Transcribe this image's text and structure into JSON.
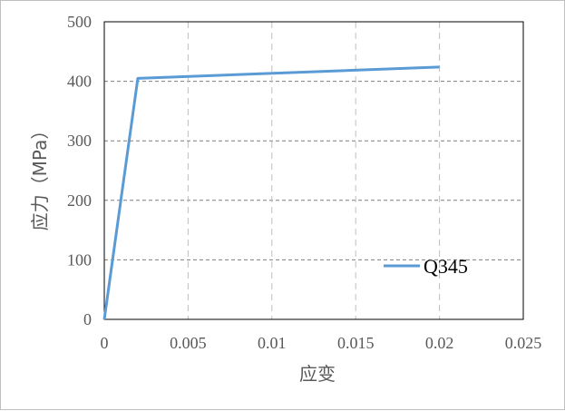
{
  "chart_data": {
    "type": "line",
    "title": "",
    "xlabel": "应变",
    "ylabel": "应力（MPa）",
    "xlim": [
      0,
      0.025
    ],
    "ylim": [
      0,
      500
    ],
    "x_ticks": [
      0,
      0.005,
      0.01,
      0.015,
      0.02,
      0.025
    ],
    "x_tick_labels": [
      "0",
      "0.005",
      "0.01",
      "0.015",
      "0.02",
      "0.025"
    ],
    "y_ticks": [
      0,
      100,
      200,
      300,
      400,
      500
    ],
    "y_tick_labels": [
      "0",
      "100",
      "200",
      "300",
      "400",
      "500"
    ],
    "grid": {
      "x": "dashed",
      "y": "dashed"
    },
    "legend_position": "lower-right",
    "series": [
      {
        "name": "Q345",
        "color": "#5b9bd5",
        "x": [
          0,
          0.002,
          0.02
        ],
        "y": [
          0,
          405,
          424
        ]
      }
    ]
  }
}
